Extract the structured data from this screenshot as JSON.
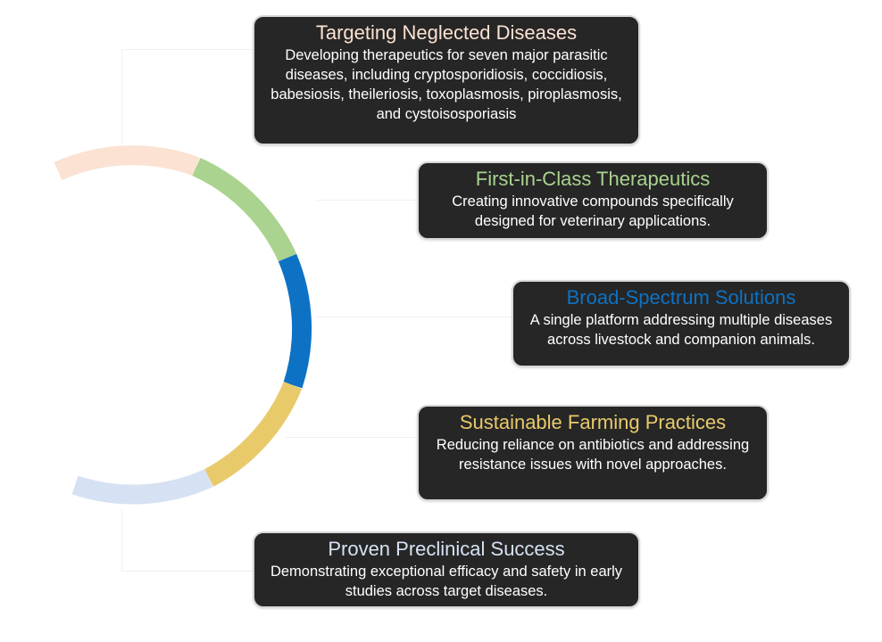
{
  "items": [
    {
      "title": "Targeting Neglected Diseases",
      "description": "Developing therapeutics for seven major parasitic diseases, including cryptosporidiosis, coccidiosis, babesiosis, theileriosis, toxoplasmosis, piroplasmosis, and cystoisosporiasis",
      "color": "#fbe2d2"
    },
    {
      "title": "First-in-Class Therapeutics",
      "description": "Creating innovative compounds specifically designed for veterinary applications.",
      "color": "#a9d38e"
    },
    {
      "title": "Broad-Spectrum Solutions",
      "description": "A single platform addressing multiple diseases across livestock and companion animals.",
      "color": "#0d72c4"
    },
    {
      "title": "Sustainable Farming Practices",
      "description": "Reducing reliance on antibiotics and addressing resistance issues with novel approaches.",
      "color": "#e9ca6b"
    },
    {
      "title": "Proven Preclinical Success",
      "description": "Demonstrating exceptional efficacy and safety in early studies across target diseases.",
      "color": "#d6e2f3"
    }
  ]
}
